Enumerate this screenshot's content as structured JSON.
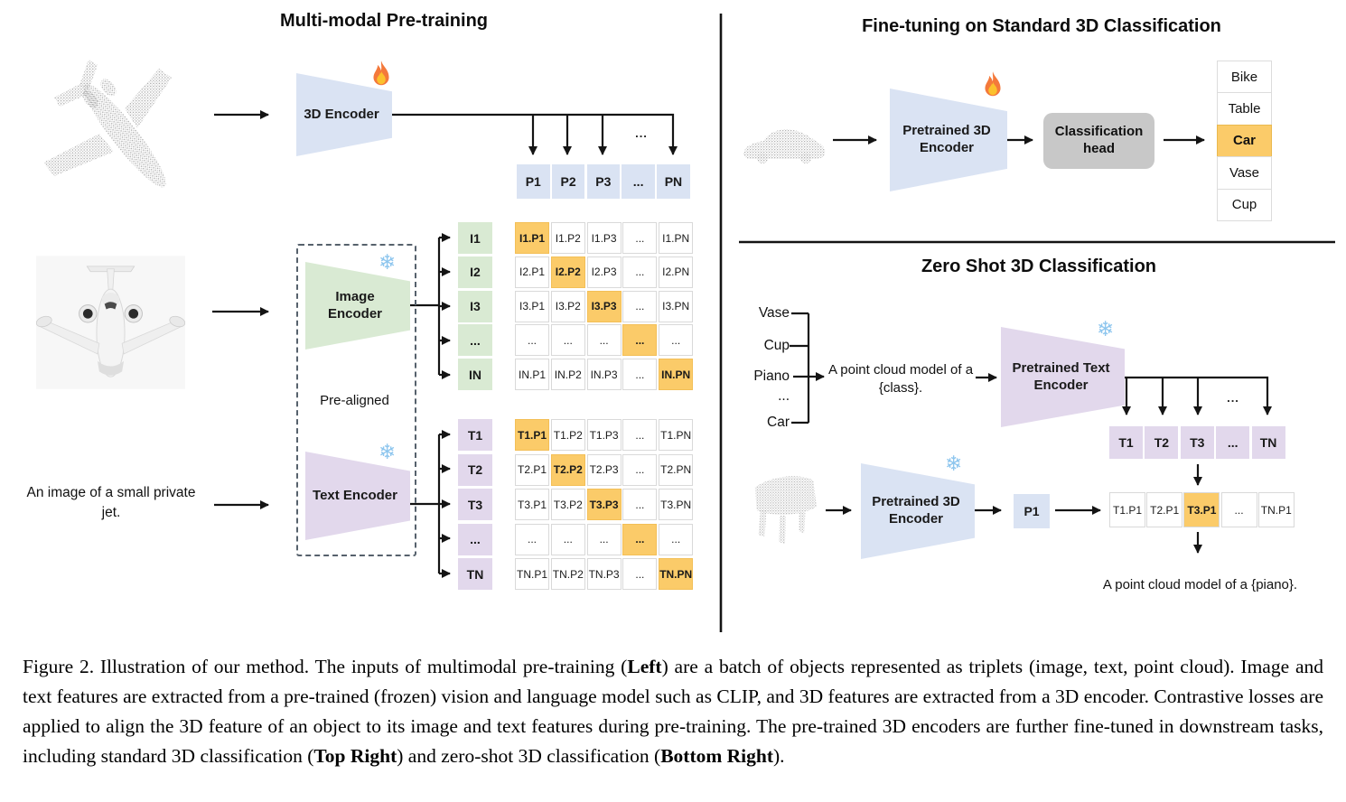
{
  "colors": {
    "blue_cell": "#dae3f3",
    "green_cell": "#d9ead3",
    "purple_cell": "#e2d8ec",
    "highlight_orange": "#fbcb69",
    "head_gray": "#c8c8c8",
    "line_black": "#141414",
    "snowflake_blue": "#8ec6ee",
    "flame_orange": "#f4793b"
  },
  "icons": {
    "snowflake": "❄",
    "flame": "flame-shape"
  },
  "pretraining": {
    "title": "Multi-modal Pre-training",
    "encoder_3d_label": "3D Encoder",
    "image_encoder_label": "Image Encoder",
    "text_encoder_label": "Text Encoder",
    "pre_aligned_label": "Pre-aligned",
    "image_caption": "An image of a small private jet.",
    "fan_dots": "...",
    "p_row": [
      "P1",
      "P2",
      "P3",
      "...",
      "PN"
    ],
    "image_rows": [
      "I1",
      "I2",
      "I3",
      "...",
      "IN"
    ],
    "image_matrix": [
      [
        "I1.P1",
        "I1.P2",
        "I1.P3",
        "...",
        "I1.PN"
      ],
      [
        "I2.P1",
        "I2.P2",
        "I2.P3",
        "...",
        "I2.PN"
      ],
      [
        "I3.P1",
        "I3.P2",
        "I3.P3",
        "...",
        "I3.PN"
      ],
      [
        "...",
        "...",
        "...",
        "...",
        "..."
      ],
      [
        "IN.P1",
        "IN.P2",
        "IN.P3",
        "...",
        "IN.PN"
      ]
    ],
    "text_rows": [
      "T1",
      "T2",
      "T3",
      "...",
      "TN"
    ],
    "text_matrix": [
      [
        "T1.P1",
        "T1.P2",
        "T1.P3",
        "...",
        "T1.PN"
      ],
      [
        "T2.P1",
        "T2.P2",
        "T2.P3",
        "...",
        "T2.PN"
      ],
      [
        "T3.P1",
        "T3.P2",
        "T3.P3",
        "...",
        "T3.PN"
      ],
      [
        "...",
        "...",
        "...",
        "...",
        "..."
      ],
      [
        "TN.P1",
        "TN.P2",
        "TN.P3",
        "...",
        "TN.PN"
      ]
    ]
  },
  "finetune": {
    "title": "Fine-tuning on Standard 3D Classification",
    "encoder_label": "Pretrained 3D Encoder",
    "head_label": "Classification head",
    "classes": [
      "Bike",
      "Table",
      "Car",
      "Vase",
      "Cup"
    ],
    "highlighted_class": "Car"
  },
  "zeroshot": {
    "title": "Zero Shot 3D Classification",
    "class_prompts": [
      "Vase",
      "Cup",
      "Piano",
      "...",
      "Car"
    ],
    "prompt_text": "A point cloud model of a {class}.",
    "text_encoder_label": "Pretrained Text Encoder",
    "encoder_label": "Pretrained 3D Encoder",
    "fan_dots": "...",
    "t_row": [
      "T1",
      "T2",
      "T3",
      "...",
      "TN"
    ],
    "p_cell": "P1",
    "result_row": [
      "T1.P1",
      "T2.P1",
      "T3.P1",
      "...",
      "TN.P1"
    ],
    "highlight_index": 2,
    "result_caption": "A point cloud model of a {piano}."
  },
  "caption": {
    "s0": "Figure 2. Illustration of our method. The inputs of multimodal pre-training (",
    "b1": "Left",
    "s2": ") are a batch of objects represented as triplets (image, text, point cloud).  Image and text features are extracted from a pre-trained (frozen) vision and language model such as CLIP, and 3D features are extracted from a 3D encoder.  Contrastive losses are applied to align the 3D feature of an object to its image and text features during pre-training. The pre-trained 3D encoders are further fine-tuned in downstream tasks, including standard 3D classification (",
    "b3": "Top Right",
    "s4": ") and zero-shot 3D classification (",
    "b5": "Bottom Right",
    "s6": ")."
  }
}
